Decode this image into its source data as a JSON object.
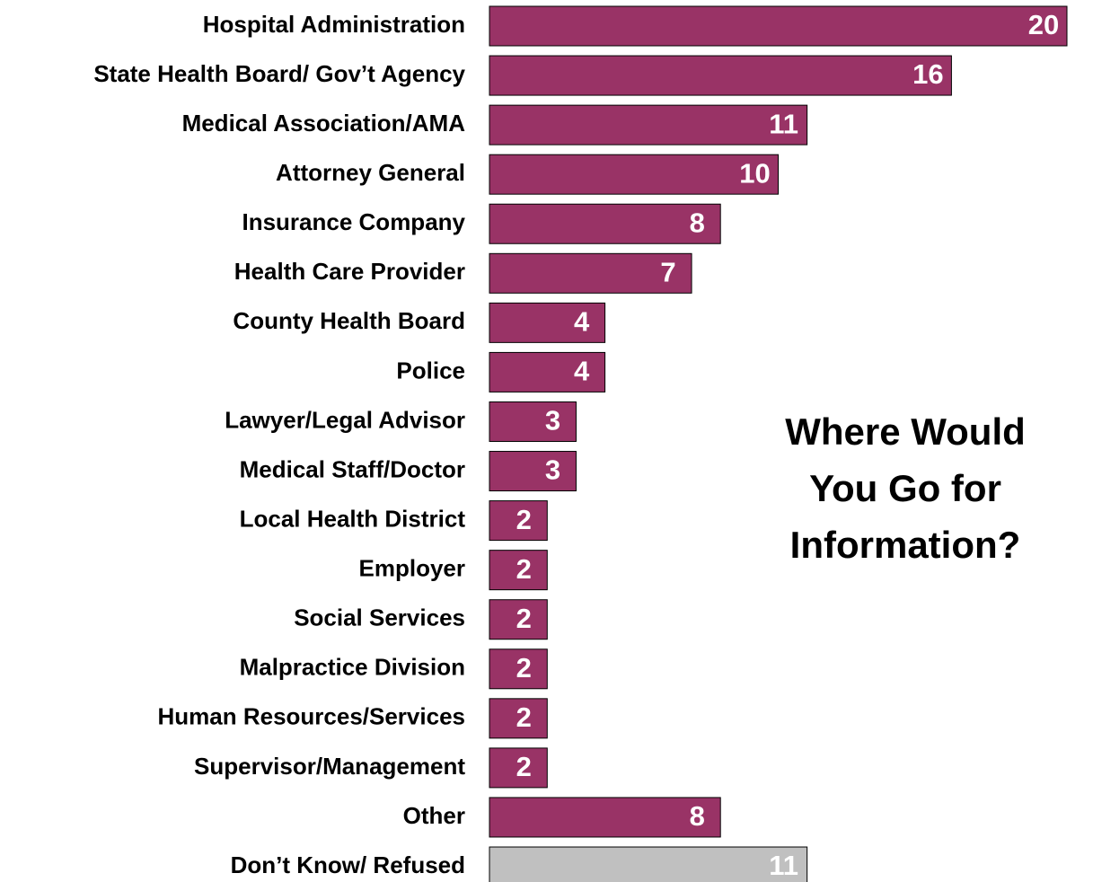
{
  "chart_data": {
    "type": "barh",
    "title": [
      "Where Would",
      "You Go for",
      "Information?"
    ],
    "categories": [
      "Hospital Administration",
      "State Health Board/ Gov’t Agency",
      "Medical Association/AMA",
      "Attorney General",
      "Insurance Company",
      "Health Care Provider",
      "County Health Board",
      "Police",
      "Lawyer/Legal Advisor",
      "Medical Staff/Doctor",
      "Local Health District",
      "Employer",
      "Social Services",
      "Malpractice Division",
      "Human Resources/Services",
      "Supervisor/Management",
      "Other",
      "Don’t Know/ Refused"
    ],
    "values": [
      20,
      16,
      11,
      10,
      8,
      7,
      4,
      4,
      3,
      3,
      2,
      2,
      2,
      2,
      2,
      2,
      8,
      11
    ],
    "colors": [
      "#993366",
      "#993366",
      "#993366",
      "#993366",
      "#993366",
      "#993366",
      "#993366",
      "#993366",
      "#993366",
      "#993366",
      "#993366",
      "#993366",
      "#993366",
      "#993366",
      "#993366",
      "#993366",
      "#993366",
      "#c0c0c0"
    ]
  }
}
